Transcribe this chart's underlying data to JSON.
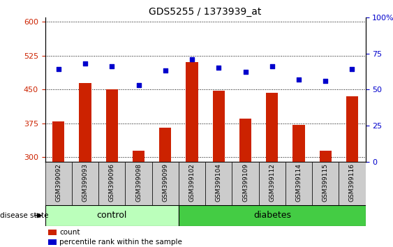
{
  "title": "GDS5255 / 1373939_at",
  "samples": [
    "GSM399092",
    "GSM399093",
    "GSM399096",
    "GSM399098",
    "GSM399099",
    "GSM399102",
    "GSM399104",
    "GSM399109",
    "GSM399112",
    "GSM399114",
    "GSM399115",
    "GSM399116"
  ],
  "counts": [
    380,
    465,
    450,
    315,
    365,
    510,
    448,
    385,
    443,
    372,
    315,
    435
  ],
  "percentiles": [
    64,
    68,
    66,
    53,
    63,
    71,
    65,
    62,
    66,
    57,
    56,
    64
  ],
  "groups": [
    "control",
    "control",
    "control",
    "control",
    "control",
    "diabetes",
    "diabetes",
    "diabetes",
    "diabetes",
    "diabetes",
    "diabetes",
    "diabetes"
  ],
  "ylim_left": [
    290,
    610
  ],
  "ylim_right": [
    0,
    100
  ],
  "yticks_left": [
    300,
    375,
    450,
    525,
    600
  ],
  "yticks_right": [
    0,
    25,
    50,
    75,
    100
  ],
  "bar_color": "#cc2200",
  "dot_color": "#0000cc",
  "control_color": "#bbffbb",
  "diabetes_color": "#44cc44",
  "col_bg_color": "#cccccc",
  "plot_bg_color": "#ffffff",
  "title_fontsize": 10,
  "tick_fontsize": 8,
  "label_fontsize": 8,
  "axis_color_left": "#cc2200",
  "axis_color_right": "#0000cc",
  "n_control": 5,
  "n_diabetes": 7
}
